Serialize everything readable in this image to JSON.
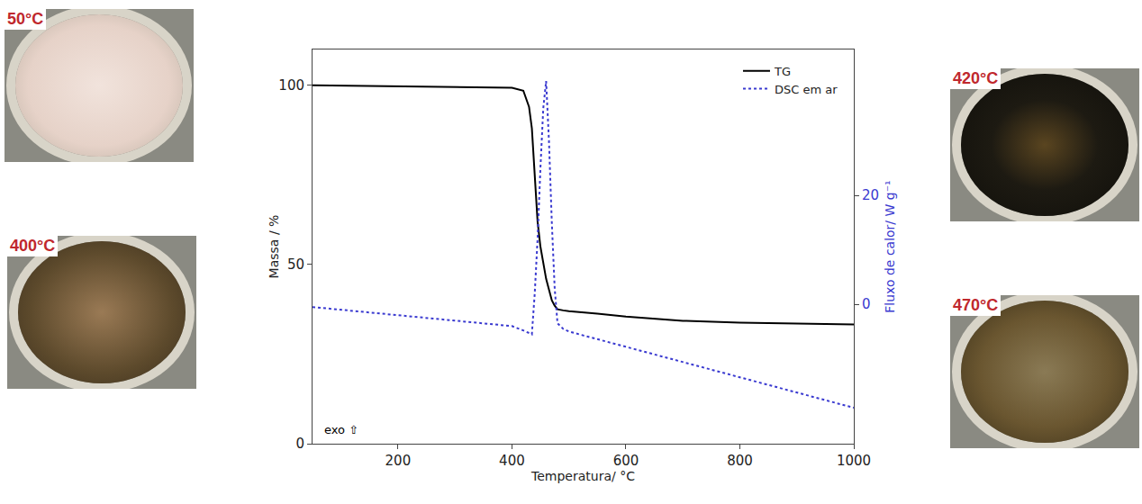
{
  "chart_data": {
    "type": "line",
    "x_label": "Temperatura/ °C",
    "y_label": "Massa / %",
    "y2_label": "Fluxo de calor/ W g⁻¹",
    "x": [
      50,
      100,
      200,
      300,
      400,
      420,
      430,
      435,
      440,
      445,
      450,
      455,
      460,
      465,
      470,
      475,
      480,
      490,
      500,
      550,
      600,
      700,
      800,
      900,
      1000
    ],
    "series": [
      {
        "name": "TG",
        "color": "#000000",
        "line_style": "solid",
        "values": [
          100,
          99.9,
          99.8,
          99.6,
          99.3,
          98.5,
          94,
          88,
          75,
          62,
          55,
          50,
          46,
          43,
          40,
          38.5,
          37.5,
          37.2,
          37,
          36.3,
          35.5,
          34.3,
          33.8,
          33.5,
          33.3
        ]
      },
      {
        "name": "DSC em ar",
        "color": "#3a3ad0",
        "line_style": "dash",
        "axis": "y2",
        "values": [
          -0.5,
          -1,
          -2,
          -3,
          -4,
          -4.8,
          -5.3,
          -5.5,
          2,
          12,
          25,
          36,
          41,
          30,
          15,
          3,
          -3.5,
          -4.5,
          -5,
          -6.4,
          -7.8,
          -10.6,
          -13.4,
          -16.2,
          -19
        ]
      }
    ],
    "xlim": [
      50,
      1000
    ],
    "xticks": [
      200,
      400,
      600,
      800,
      1000
    ],
    "ylim": [
      0,
      110
    ],
    "yticks": [
      0,
      50,
      100
    ],
    "y2lim": [
      -25.6,
      46.8
    ],
    "y2ticks": [
      0,
      20
    ],
    "legend": "upper right",
    "grid": false,
    "annotations": [
      {
        "text": "exo ⇧",
        "x": 100,
        "y": 4
      }
    ],
    "photos": [
      {
        "label": "50°C"
      },
      {
        "label": "400°C"
      },
      {
        "label": "420°C"
      },
      {
        "label": "470°C"
      }
    ]
  }
}
